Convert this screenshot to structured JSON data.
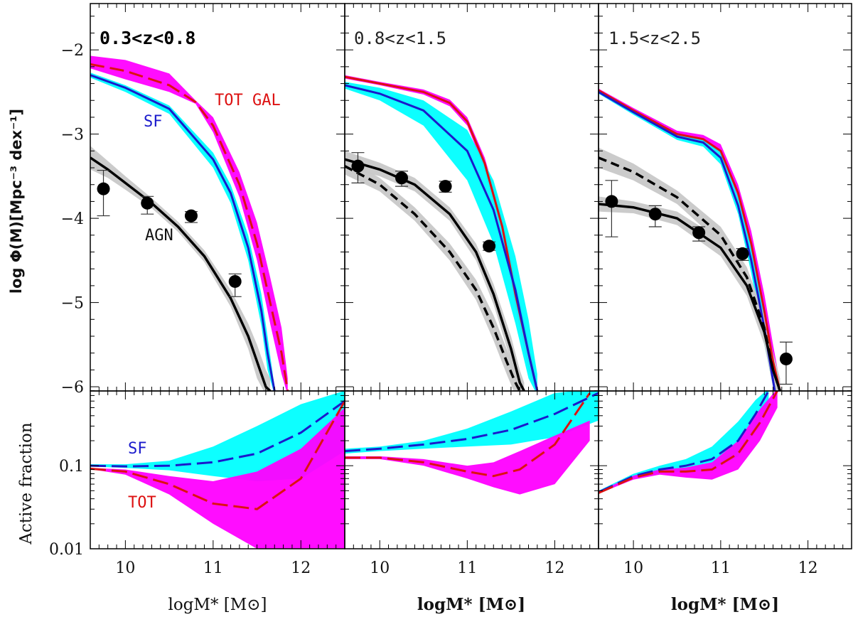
{
  "figure": {
    "ylabel_top": "log Φ(M)[Mpc⁻³ dex⁻¹]",
    "ylabel_bottom": "Active fraction",
    "xlabel": "logM* [M⊙]",
    "colors": {
      "tot_band": "#ff00ff",
      "tot_line": "#dd1111",
      "sf_band": "#00ffff",
      "sf_line": "#1a1acc",
      "agn_band": "#c8c8c8",
      "agn_line": "#000000",
      "data_point": "#000000"
    }
  },
  "chart_data": [
    {
      "type": "line",
      "panel": "top",
      "title": "0.3<z<0.8",
      "xlabel": "logM* [M⊙]",
      "ylabel": "log Φ(M)[Mpc⁻³ dex⁻¹]",
      "xlim": [
        9.6,
        12.5
      ],
      "ylim": [
        -6.05,
        -1.45
      ],
      "xticks": [
        10,
        11,
        12
      ],
      "yticks": [
        -2,
        -3,
        -4,
        -5,
        -6
      ],
      "annotations": [
        {
          "text": "TOT GAL",
          "color": "#dd1111"
        },
        {
          "text": "SF",
          "color": "#1a1acc"
        },
        {
          "text": "AGN",
          "color": "#111111"
        }
      ],
      "series": [
        {
          "name": "TOT GAL",
          "x": [
            9.6,
            10.0,
            10.5,
            10.8,
            11.0,
            11.3,
            11.5,
            11.65,
            11.78,
            11.85
          ],
          "y": [
            -2.17,
            -2.25,
            -2.42,
            -2.62,
            -2.9,
            -3.6,
            -4.3,
            -5.0,
            -5.6,
            -6.05
          ],
          "band_lo": [
            -2.22,
            -2.35,
            -2.5,
            -2.64,
            -2.98,
            -3.75,
            -4.5,
            -5.25,
            -5.85,
            -6.1
          ],
          "band_hi": [
            -2.07,
            -2.12,
            -2.28,
            -2.6,
            -2.8,
            -3.45,
            -4.05,
            -4.7,
            -5.3,
            -5.9
          ]
        },
        {
          "name": "SF",
          "x": [
            9.6,
            10.0,
            10.5,
            11.0,
            11.2,
            11.4,
            11.55,
            11.62,
            11.7
          ],
          "y": [
            -2.3,
            -2.45,
            -2.7,
            -3.3,
            -3.7,
            -4.35,
            -5.1,
            -5.6,
            -6.05
          ],
          "band_lo": [
            -2.33,
            -2.5,
            -2.76,
            -3.4,
            -3.82,
            -4.5,
            -5.28,
            -5.8,
            -6.1
          ],
          "band_hi": [
            -2.27,
            -2.42,
            -2.66,
            -3.22,
            -3.6,
            -4.2,
            -4.9,
            -5.4,
            -6.0
          ]
        },
        {
          "name": "AGN",
          "x": [
            9.6,
            9.8,
            10.0,
            10.3,
            10.6,
            10.9,
            11.2,
            11.4,
            11.5,
            11.6,
            11.65
          ],
          "y": [
            -3.28,
            -3.42,
            -3.58,
            -3.82,
            -4.1,
            -4.45,
            -4.95,
            -5.4,
            -5.7,
            -6.0,
            -6.05
          ],
          "band_lo": [
            -3.42,
            -3.52,
            -3.66,
            -3.88,
            -4.16,
            -4.52,
            -5.05,
            -5.55,
            -5.9,
            -6.1,
            -6.1
          ],
          "band_hi": [
            -3.14,
            -3.32,
            -3.5,
            -3.76,
            -4.04,
            -4.38,
            -4.85,
            -5.25,
            -5.5,
            -5.8,
            -5.9
          ]
        }
      ],
      "points": {
        "name": "AGN data",
        "x": [
          9.75,
          10.25,
          10.75,
          11.25
        ],
        "y": [
          -3.65,
          -3.82,
          -3.97,
          -4.75
        ],
        "err_lo": [
          0.32,
          0.13,
          0.08,
          0.18
        ],
        "err_hi": [
          0.22,
          0.08,
          0.05,
          0.09
        ]
      }
    },
    {
      "type": "area",
      "panel": "bottom",
      "ylabel": "Active fraction",
      "xlabel": "logM* [M⊙]",
      "xlim": [
        9.6,
        12.5
      ],
      "ylim_log": [
        -2,
        -0.1
      ],
      "ytick_labels": [
        "0.01",
        "0.1"
      ],
      "annotations": [
        {
          "text": "SF",
          "color": "#1a1acc"
        },
        {
          "text": "TOT",
          "color": "#dd1111"
        }
      ],
      "series": [
        {
          "name": "SF",
          "x": [
            9.6,
            10.0,
            10.5,
            11.0,
            11.5,
            12.0,
            12.5
          ],
          "y": [
            0.1,
            0.098,
            0.1,
            0.11,
            0.14,
            0.25,
            0.6
          ],
          "band_lo": [
            0.098,
            0.094,
            0.088,
            0.075,
            0.065,
            0.07,
            0.15
          ],
          "band_hi": [
            0.104,
            0.104,
            0.115,
            0.17,
            0.3,
            0.55,
            0.8
          ]
        },
        {
          "name": "TOT",
          "x": [
            9.6,
            10.0,
            10.5,
            11.0,
            11.5,
            12.0,
            12.5
          ],
          "y": [
            0.092,
            0.085,
            0.06,
            0.035,
            0.03,
            0.07,
            0.6
          ],
          "band_lo": [
            0.091,
            0.078,
            0.045,
            0.02,
            0.01,
            0.01,
            0.01
          ],
          "band_hi": [
            0.094,
            0.09,
            0.075,
            0.065,
            0.085,
            0.16,
            0.5
          ]
        }
      ]
    },
    {
      "type": "line",
      "panel": "top",
      "title": "0.8<z<1.5",
      "xlim": [
        9.6,
        12.5
      ],
      "ylim": [
        -6.05,
        -1.45
      ],
      "xticks": [
        10,
        11,
        12
      ],
      "series": [
        {
          "name": "TOT GAL",
          "x": [
            9.6,
            10.0,
            10.5,
            10.8,
            11.0,
            11.2,
            11.4,
            11.55,
            11.7,
            11.8
          ],
          "y": [
            -2.32,
            -2.4,
            -2.5,
            -2.63,
            -2.85,
            -3.35,
            -4.1,
            -4.9,
            -5.6,
            -6.05
          ],
          "band_lo": [
            -2.34,
            -2.42,
            -2.53,
            -2.67,
            -2.9,
            -3.42,
            -4.2,
            -5.05,
            -5.8,
            -6.1
          ],
          "band_hi": [
            -2.3,
            -2.38,
            -2.47,
            -2.59,
            -2.8,
            -3.28,
            -4.0,
            -4.75,
            -5.45,
            -5.95
          ]
        },
        {
          "name": "SF",
          "x": [
            9.6,
            10.0,
            10.5,
            11.0,
            11.3,
            11.55,
            11.7,
            11.8
          ],
          "y": [
            -2.42,
            -2.52,
            -2.72,
            -3.2,
            -3.9,
            -4.85,
            -5.6,
            -6.05
          ],
          "band_lo": [
            -2.46,
            -2.6,
            -2.9,
            -3.55,
            -4.3,
            -5.25,
            -5.9,
            -6.1
          ],
          "band_hi": [
            -2.38,
            -2.45,
            -2.6,
            -2.95,
            -3.55,
            -4.45,
            -5.2,
            -5.85
          ]
        },
        {
          "name": "AGN high",
          "x": [
            9.6,
            10.0,
            10.4,
            10.8,
            11.1,
            11.3,
            11.5,
            11.6,
            11.65
          ],
          "y": [
            -3.3,
            -3.42,
            -3.6,
            -3.95,
            -4.4,
            -4.9,
            -5.55,
            -5.95,
            -6.05
          ],
          "band_lo": [
            -3.4,
            -3.5,
            -3.68,
            -4.03,
            -4.5,
            -5.02,
            -5.7,
            -6.1,
            -6.1
          ],
          "band_hi": [
            -3.2,
            -3.34,
            -3.52,
            -3.87,
            -4.3,
            -4.78,
            -5.4,
            -5.8,
            -5.95
          ]
        },
        {
          "name": "AGN low",
          "x": [
            9.6,
            10.0,
            10.4,
            10.8,
            11.1,
            11.3,
            11.45,
            11.55,
            11.6
          ],
          "y": [
            -3.38,
            -3.6,
            -3.95,
            -4.4,
            -4.85,
            -5.3,
            -5.7,
            -5.95,
            -6.05
          ],
          "band_lo": [
            -3.48,
            -3.68,
            -4.03,
            -4.5,
            -4.97,
            -5.45,
            -5.85,
            -6.1,
            -6.1
          ],
          "band_hi": [
            -3.28,
            -3.52,
            -3.87,
            -4.3,
            -4.73,
            -5.15,
            -5.55,
            -5.8,
            -5.95
          ]
        }
      ],
      "points": {
        "name": "AGN data",
        "x": [
          9.75,
          10.25,
          10.75,
          11.25
        ],
        "y": [
          -3.38,
          -3.52,
          -3.62,
          -4.33
        ],
        "err_lo": [
          0.2,
          0.1,
          0.07,
          0.05
        ],
        "err_hi": [
          0.16,
          0.08,
          0.06,
          0.05
        ]
      }
    },
    {
      "type": "area",
      "panel": "bottom",
      "xlim": [
        9.6,
        12.5
      ],
      "ylim_log": [
        -2,
        -0.1
      ],
      "series": [
        {
          "name": "SF",
          "x": [
            9.6,
            10.0,
            10.5,
            11.0,
            11.5,
            12.0,
            12.5
          ],
          "y": [
            0.15,
            0.16,
            0.18,
            0.21,
            0.27,
            0.42,
            0.75
          ],
          "band_lo": [
            0.14,
            0.15,
            0.16,
            0.17,
            0.18,
            0.22,
            0.35
          ],
          "band_hi": [
            0.16,
            0.17,
            0.2,
            0.28,
            0.45,
            0.75,
            0.85
          ]
        },
        {
          "name": "TOT",
          "x": [
            9.6,
            10.0,
            10.5,
            11.0,
            11.3,
            11.6,
            12.0,
            12.4
          ],
          "y": [
            0.125,
            0.125,
            0.11,
            0.085,
            0.075,
            0.09,
            0.18,
            0.75
          ],
          "band_lo": [
            0.12,
            0.12,
            0.1,
            0.07,
            0.055,
            0.045,
            0.06,
            0.2
          ],
          "band_hi": [
            0.13,
            0.13,
            0.12,
            0.1,
            0.11,
            0.15,
            0.23,
            0.35
          ]
        }
      ]
    },
    {
      "type": "line",
      "panel": "top",
      "title": "1.5<z<2.5",
      "xlim": [
        9.6,
        12.5
      ],
      "ylim": [
        -6.05,
        -1.45
      ],
      "xticks": [
        10,
        11,
        12
      ],
      "series": [
        {
          "name": "TOT GAL",
          "x": [
            9.6,
            10.0,
            10.5,
            10.8,
            11.0,
            11.2,
            11.35,
            11.5,
            11.6,
            11.68
          ],
          "y": [
            -2.48,
            -2.72,
            -3.0,
            -3.06,
            -3.2,
            -3.7,
            -4.3,
            -5.1,
            -5.7,
            -6.05
          ],
          "band_lo": [
            -2.5,
            -2.75,
            -3.04,
            -3.11,
            -3.28,
            -3.8,
            -4.45,
            -5.3,
            -5.9,
            -6.1
          ],
          "band_hi": [
            -2.46,
            -2.69,
            -2.96,
            -3.01,
            -3.12,
            -3.6,
            -4.15,
            -4.9,
            -5.5,
            -5.95
          ]
        },
        {
          "name": "SF",
          "x": [
            9.6,
            10.0,
            10.5,
            10.8,
            11.0,
            11.2,
            11.35,
            11.5,
            11.62
          ],
          "y": [
            -2.5,
            -2.74,
            -3.03,
            -3.1,
            -3.28,
            -3.85,
            -4.5,
            -5.3,
            -6.05
          ],
          "band_lo": [
            -2.52,
            -2.77,
            -3.07,
            -3.15,
            -3.36,
            -3.95,
            -4.65,
            -5.5,
            -6.1
          ],
          "band_hi": [
            -2.48,
            -2.71,
            -2.99,
            -3.05,
            -3.2,
            -3.75,
            -4.35,
            -5.1,
            -5.95
          ]
        },
        {
          "name": "AGN high",
          "x": [
            9.6,
            10.0,
            10.5,
            11.0,
            11.3,
            11.5,
            11.6,
            11.68
          ],
          "y": [
            -3.28,
            -3.45,
            -3.75,
            -4.2,
            -4.7,
            -5.3,
            -5.8,
            -6.05
          ],
          "band_lo": [
            -3.4,
            -3.55,
            -3.83,
            -4.3,
            -4.82,
            -5.45,
            -6.0,
            -6.1
          ],
          "band_hi": [
            -3.16,
            -3.35,
            -3.67,
            -4.1,
            -4.58,
            -5.15,
            -5.6,
            -5.9
          ]
        },
        {
          "name": "AGN low",
          "x": [
            9.6,
            10.0,
            10.5,
            11.0,
            11.3,
            11.5,
            11.6,
            11.68
          ],
          "y": [
            -3.83,
            -3.87,
            -4.0,
            -4.35,
            -4.8,
            -5.35,
            -5.8,
            -6.05
          ],
          "band_lo": [
            -3.92,
            -3.94,
            -4.08,
            -4.45,
            -4.92,
            -5.5,
            -6.0,
            -6.1
          ],
          "band_hi": [
            -3.74,
            -3.8,
            -3.92,
            -4.25,
            -4.68,
            -5.2,
            -5.6,
            -5.9
          ]
        }
      ],
      "points": {
        "name": "AGN data",
        "x": [
          9.75,
          10.25,
          10.75,
          11.25,
          11.75
        ],
        "y": [
          -3.8,
          -3.95,
          -4.17,
          -4.42,
          -5.67
        ],
        "err_lo": [
          0.42,
          0.15,
          0.1,
          0.08,
          0.3
        ],
        "err_hi": [
          0.25,
          0.1,
          0.07,
          0.06,
          0.2
        ]
      }
    },
    {
      "type": "area",
      "panel": "bottom",
      "xlim": [
        9.6,
        12.5
      ],
      "ylim_log": [
        -2,
        -0.1
      ],
      "series": [
        {
          "name": "SF",
          "x": [
            9.6,
            10.0,
            10.3,
            10.6,
            10.9,
            11.2,
            11.4,
            11.55
          ],
          "y": [
            0.048,
            0.075,
            0.09,
            0.1,
            0.12,
            0.2,
            0.42,
            0.8
          ],
          "band_lo": [
            0.046,
            0.07,
            0.082,
            0.085,
            0.09,
            0.13,
            0.27,
            0.55
          ],
          "band_hi": [
            0.05,
            0.08,
            0.1,
            0.12,
            0.17,
            0.34,
            0.62,
            0.85
          ]
        },
        {
          "name": "TOT",
          "x": [
            9.6,
            10.0,
            10.3,
            10.6,
            10.9,
            11.2,
            11.45,
            11.65
          ],
          "y": [
            0.047,
            0.072,
            0.085,
            0.085,
            0.09,
            0.14,
            0.33,
            0.8
          ],
          "band_lo": [
            0.046,
            0.068,
            0.078,
            0.072,
            0.068,
            0.09,
            0.2,
            0.5
          ],
          "band_hi": [
            0.049,
            0.076,
            0.09,
            0.095,
            0.11,
            0.2,
            0.48,
            0.85
          ]
        }
      ]
    }
  ]
}
